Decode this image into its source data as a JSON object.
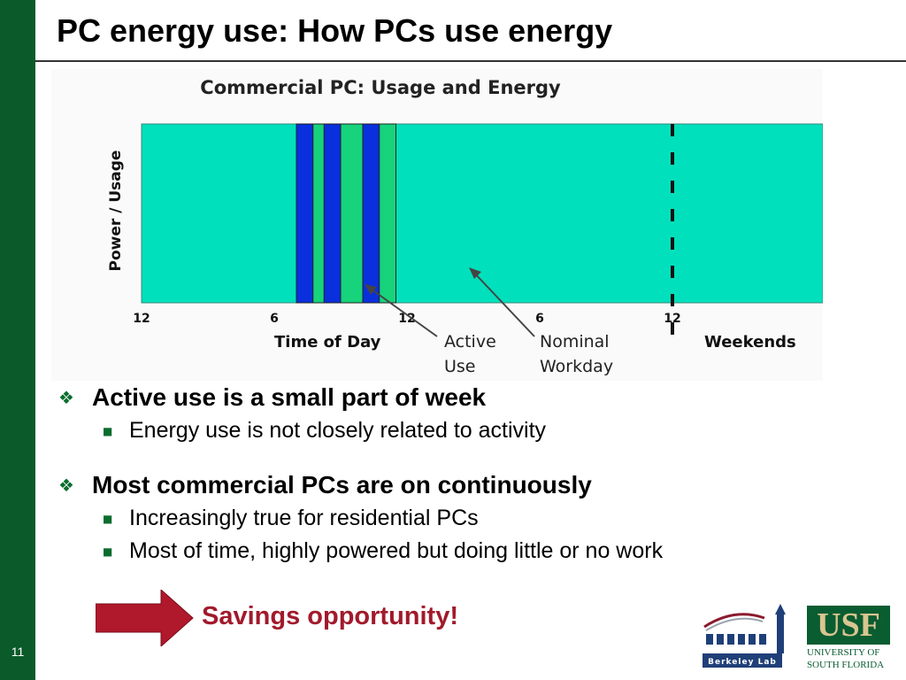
{
  "slide": {
    "title": "PC energy use: How PCs use energy",
    "page_number": "11"
  },
  "colors": {
    "sidebar": "#0b5a2a",
    "idle_power": "#00e0bc",
    "nominal_workday": "#16d37c",
    "active_use": "#0a2fdc",
    "bullet_marker": "#0b6d2e",
    "savings_text": "#a11a2b",
    "arrow": "#b0182b"
  },
  "chart_data": {
    "type": "area",
    "title": "Commercial PC:  Usage and Energy",
    "ylabel": "Power / Usage",
    "xlabel": "Time of Day",
    "x_tick_labels": [
      "12",
      "6",
      "12",
      "6",
      "12"
    ],
    "x_ticks_hours": [
      0,
      6,
      12,
      18,
      24
    ],
    "weekend_label": "Weekends",
    "series": [
      {
        "name": "Nominal Workday",
        "segments_hours": [
          [
            7,
            11.5
          ]
        ]
      },
      {
        "name": "Active Use",
        "segments_hours": [
          [
            7,
            7.75
          ],
          [
            8.25,
            9
          ],
          [
            10,
            10.75
          ]
        ]
      }
    ],
    "annotations": {
      "active_use": "Active\nUse",
      "nominal_workday": "Nominal\nWorkday"
    }
  },
  "bullets": [
    {
      "text": "Active use is a small part of week",
      "sub": [
        "Energy use is not closely related to activity"
      ]
    },
    {
      "text": "Most commercial PCs are on continuously",
      "sub": [
        "Increasingly true for residential PCs",
        "Most of time, highly powered but doing little or no work"
      ]
    }
  ],
  "callout": {
    "text": "Savings opportunity!"
  },
  "logos": {
    "berkeley": "Berkeley Lab",
    "usf_mark": "USF",
    "usf_line1": "UNIVERSITY OF",
    "usf_line2": "SOUTH FLORIDA"
  }
}
